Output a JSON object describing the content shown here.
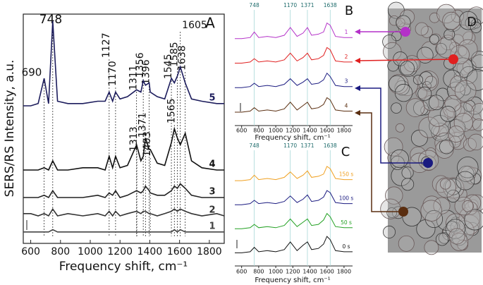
{
  "chart_data": [
    {
      "type": "line",
      "panel": "A",
      "ylabel": "SERS/RS  Intensity, a.u.",
      "xlabel": "Frequency shift, cm⁻¹",
      "xlim": [
        550,
        1900
      ],
      "xticks": [
        600,
        800,
        1000,
        1200,
        1400,
        1600,
        1800
      ],
      "ylim": [
        0,
        100
      ],
      "x": [
        550,
        600,
        650,
        690,
        720,
        748,
        780,
        850,
        950,
        1050,
        1100,
        1127,
        1150,
        1170,
        1200,
        1250,
        1311,
        1340,
        1356,
        1371,
        1396,
        1403,
        1450,
        1500,
        1545,
        1565,
        1585,
        1605,
        1638,
        1680,
        1750,
        1850,
        1900
      ],
      "series": [
        {
          "name": "5",
          "color": "#1c1c5c",
          "values": [
            60,
            60,
            61,
            72,
            61,
            97,
            62,
            61,
            61,
            62,
            62,
            66,
            62,
            66,
            63,
            64,
            67,
            66,
            71,
            69,
            70,
            66,
            64,
            63,
            72,
            70,
            73,
            77,
            70,
            63,
            62,
            61,
            61
          ]
        },
        {
          "name": "4",
          "color": "#111111",
          "values": [
            32,
            32,
            32,
            33,
            32,
            36,
            32,
            32,
            33,
            33,
            32,
            38,
            33,
            38,
            33,
            34,
            43,
            36,
            38,
            46,
            41,
            41,
            35,
            34,
            44,
            50,
            46,
            43,
            48,
            36,
            33,
            32,
            32
          ]
        },
        {
          "name": "3",
          "color": "#222222",
          "values": [
            20,
            20,
            20,
            21,
            20,
            23,
            20,
            20,
            20,
            21,
            20,
            22,
            21,
            23,
            20,
            21,
            23,
            22,
            23,
            25,
            23,
            22,
            21,
            21,
            23,
            25,
            24,
            26,
            24,
            21,
            20,
            20,
            20
          ]
        },
        {
          "name": "2",
          "color": "#333333",
          "values": [
            13,
            13,
            12,
            13,
            12,
            15,
            12,
            13,
            12,
            13,
            12,
            14,
            12,
            14,
            12,
            13,
            14,
            13,
            14,
            14,
            13,
            13,
            12,
            13,
            14,
            15,
            14,
            15,
            14,
            13,
            12,
            13,
            12
          ]
        },
        {
          "name": "1",
          "color": "#444444",
          "values": [
            5,
            5,
            5,
            5,
            5,
            6,
            5,
            5,
            5,
            5,
            5,
            5,
            5,
            5,
            5,
            5,
            5,
            5,
            5,
            5,
            5,
            5,
            5,
            5,
            5,
            6,
            5,
            6,
            5,
            5,
            5,
            5,
            5
          ]
        }
      ],
      "peak_labels": [
        690,
        748,
        1127,
        1170,
        1311,
        1356,
        1396,
        1545,
        1585,
        1605,
        1638,
        1313,
        1371,
        1403,
        1565
      ]
    },
    {
      "type": "line",
      "panel": "B",
      "xlabel": "Frequency shift, cm⁻¹",
      "xlim": [
        520,
        1900
      ],
      "xticks": [
        600,
        800,
        1000,
        1200,
        1400,
        1600,
        1800
      ],
      "ylim": [
        0,
        100
      ],
      "guides": [
        748,
        1170,
        1371,
        1638
      ],
      "x": [
        520,
        600,
        700,
        748,
        800,
        900,
        1000,
        1100,
        1170,
        1250,
        1320,
        1371,
        1420,
        1500,
        1560,
        1600,
        1638,
        1700,
        1800,
        1900
      ],
      "series": [
        {
          "name": "1",
          "color": "#b431c8",
          "values": [
            78,
            78,
            79,
            84,
            79,
            80,
            79,
            81,
            88,
            80,
            83,
            88,
            81,
            82,
            84,
            92,
            90,
            80,
            79,
            79
          ]
        },
        {
          "name": "2",
          "color": "#e02020",
          "values": [
            56,
            56,
            57,
            60,
            57,
            58,
            57,
            59,
            65,
            58,
            61,
            65,
            59,
            60,
            63,
            70,
            68,
            58,
            57,
            57
          ]
        },
        {
          "name": "3",
          "color": "#1a1a80",
          "values": [
            34,
            34,
            35,
            38,
            35,
            36,
            35,
            37,
            42,
            36,
            39,
            42,
            37,
            38,
            41,
            47,
            44,
            36,
            35,
            35
          ]
        },
        {
          "name": "4",
          "color": "#5a2e10",
          "values": [
            12,
            12,
            13,
            16,
            13,
            14,
            13,
            15,
            21,
            14,
            18,
            21,
            15,
            16,
            19,
            25,
            23,
            14,
            13,
            13
          ]
        }
      ]
    },
    {
      "type": "line",
      "panel": "C",
      "xlabel": "Frequency shift, cm⁻¹",
      "xlim": [
        520,
        1900
      ],
      "xticks": [
        600,
        800,
        1000,
        1200,
        1400,
        1600,
        1800
      ],
      "ylim": [
        0,
        100
      ],
      "guides": [
        748,
        1170,
        1371,
        1638
      ],
      "x": [
        520,
        600,
        700,
        748,
        800,
        900,
        1000,
        1100,
        1170,
        1250,
        1320,
        1371,
        1420,
        1500,
        1560,
        1600,
        1638,
        1700,
        1800,
        1900
      ],
      "series": [
        {
          "name": "150 s",
          "color": "#f0a020",
          "values": [
            78,
            78,
            79,
            83,
            79,
            80,
            79,
            81,
            86,
            80,
            83,
            87,
            81,
            82,
            84,
            91,
            89,
            80,
            79,
            79
          ]
        },
        {
          "name": "100 s",
          "color": "#1a1a80",
          "values": [
            56,
            56,
            57,
            60,
            57,
            58,
            57,
            59,
            64,
            58,
            61,
            65,
            59,
            60,
            63,
            69,
            67,
            58,
            57,
            57
          ]
        },
        {
          "name": "50 s",
          "color": "#22a022",
          "values": [
            34,
            34,
            35,
            38,
            35,
            36,
            35,
            37,
            43,
            36,
            40,
            43,
            37,
            38,
            42,
            48,
            45,
            36,
            35,
            35
          ]
        },
        {
          "name": "0 s",
          "color": "#111111",
          "values": [
            12,
            12,
            13,
            17,
            13,
            14,
            13,
            15,
            22,
            14,
            19,
            22,
            15,
            16,
            20,
            27,
            24,
            14,
            13,
            13
          ]
        }
      ]
    }
  ],
  "panel_labels": [
    "A",
    "B",
    "C",
    "D"
  ]
}
